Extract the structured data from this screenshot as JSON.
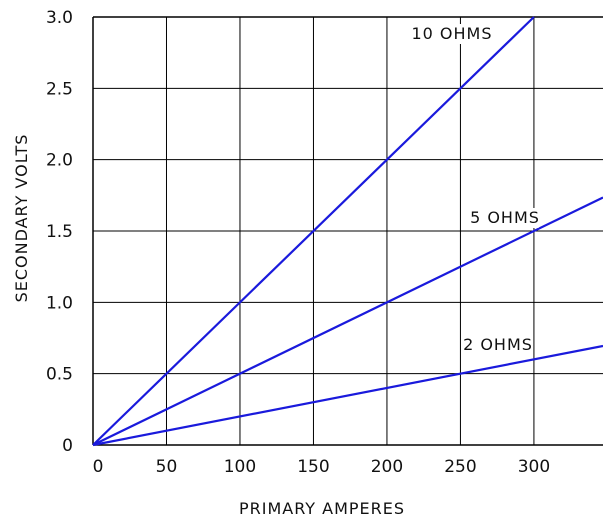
{
  "chart_data": {
    "type": "line",
    "xlabel": "PRIMARY AMPERES",
    "ylabel": "SECONDARY VOLTS",
    "xlim": [
      0,
      347
    ],
    "ylim": [
      0,
      3.0
    ],
    "x_ticks": [
      0,
      50,
      100,
      150,
      200,
      250,
      300
    ],
    "x_tick_labels": [
      "0",
      "50",
      "100",
      "150",
      "200",
      "250",
      "300"
    ],
    "y_ticks": [
      0,
      0.5,
      1.0,
      1.5,
      2.0,
      2.5,
      3.0
    ],
    "y_tick_labels": [
      "0",
      "0.5",
      "1.0",
      "1.5",
      "2.0",
      "2.5",
      "3.0"
    ],
    "grid": true,
    "line_color": "#1a1adc",
    "series": [
      {
        "name": "10 OHMS",
        "x": [
          0,
          300
        ],
        "y": [
          0,
          3.0
        ]
      },
      {
        "name": "5 OHMS",
        "x": [
          0,
          347
        ],
        "y": [
          0,
          1.735
        ]
      },
      {
        "name": "2 OHMS",
        "x": [
          0,
          347
        ],
        "y": [
          0,
          0.694
        ]
      }
    ]
  }
}
